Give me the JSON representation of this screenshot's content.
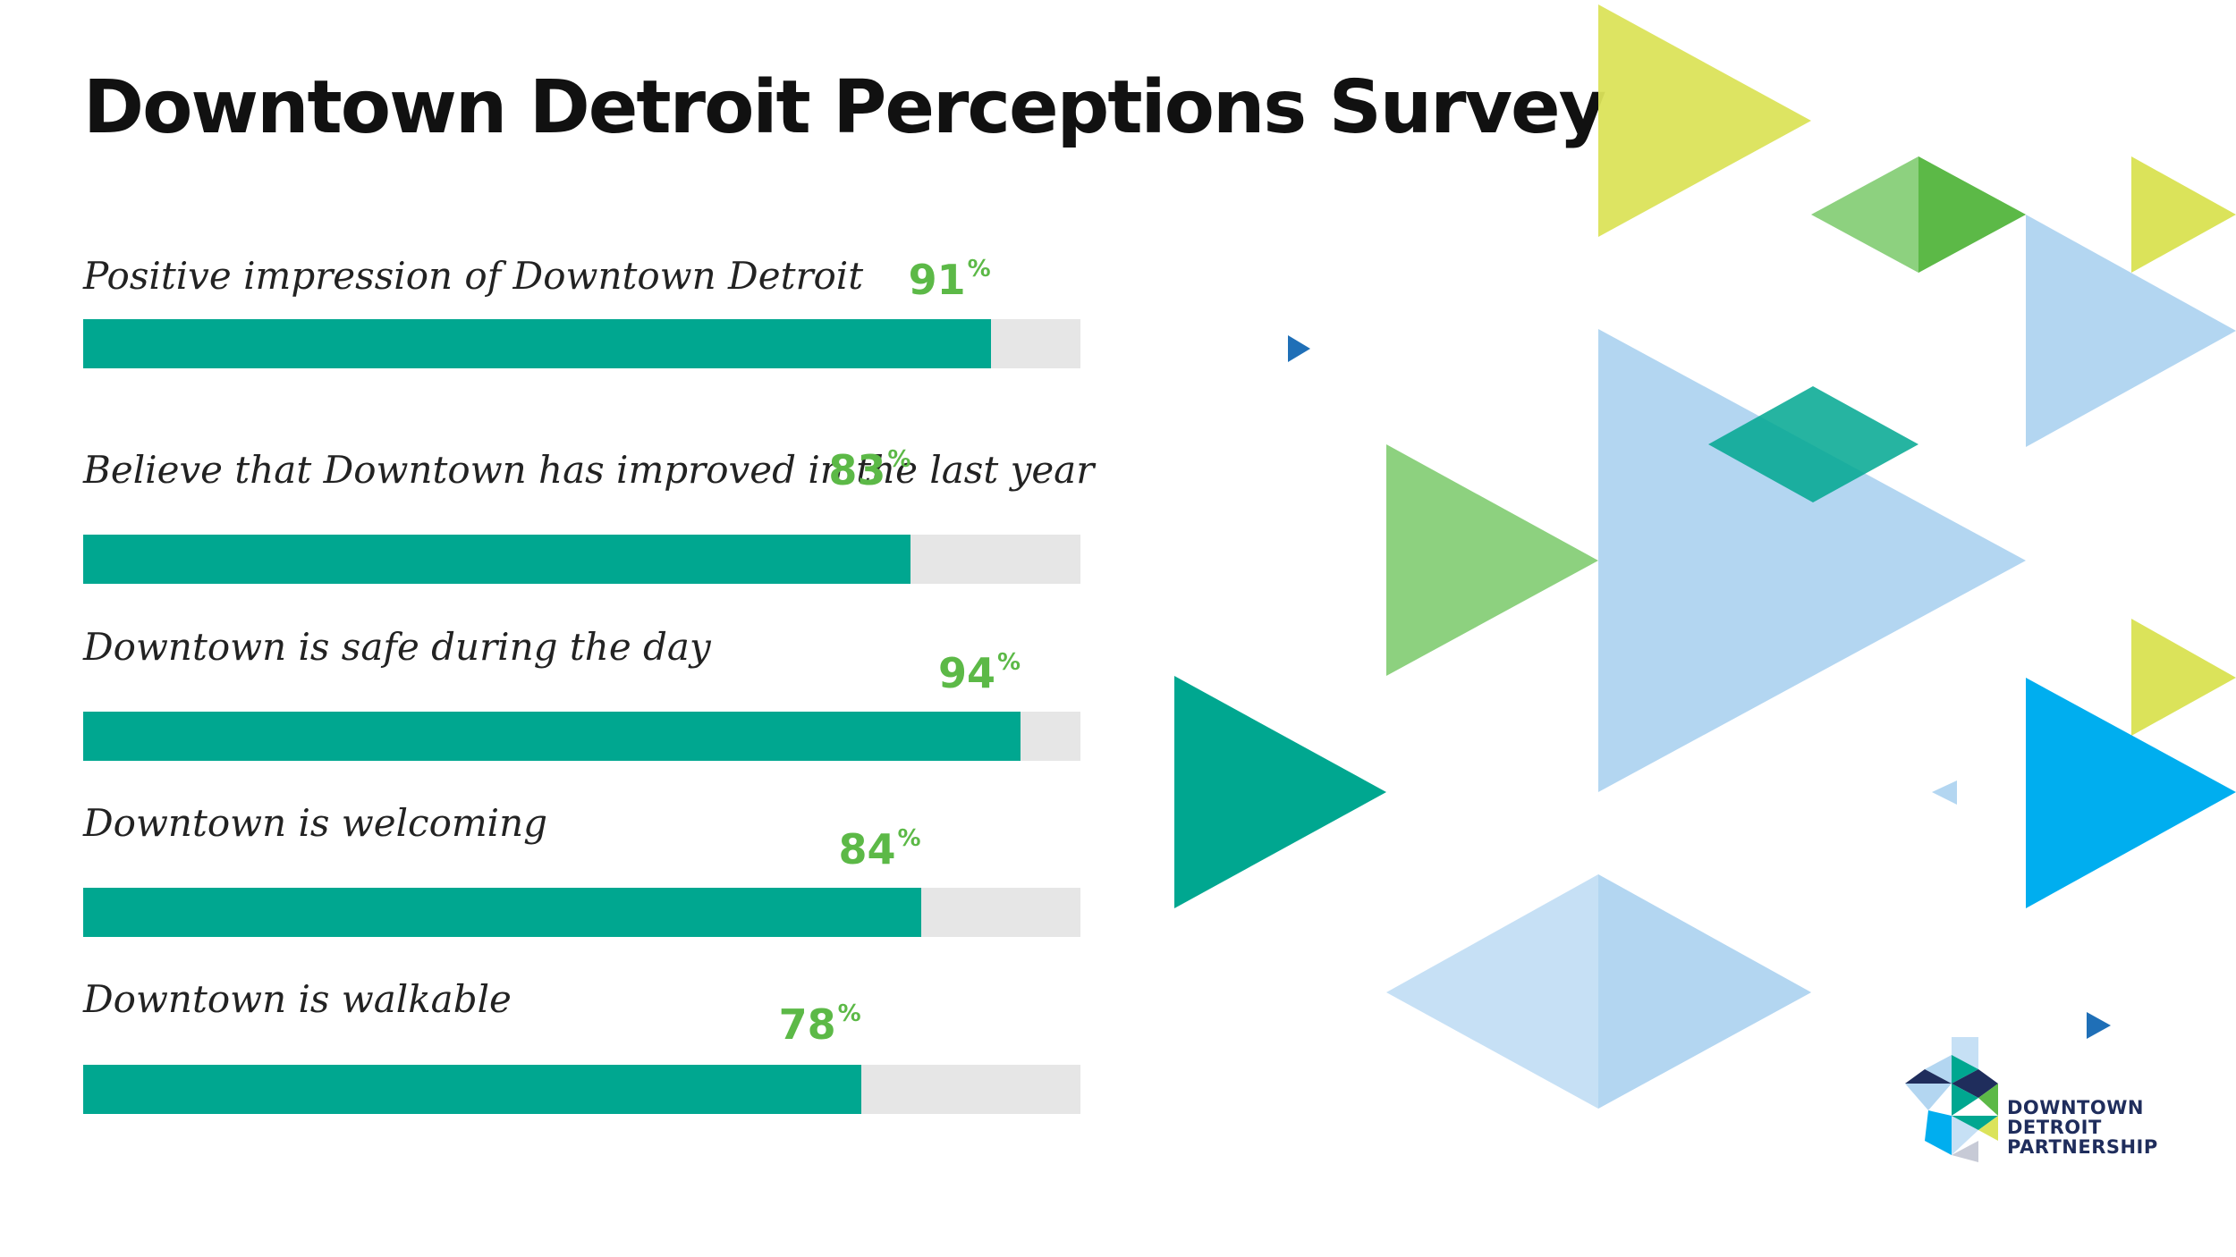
{
  "chart_data": {
    "type": "bar",
    "orientation": "horizontal",
    "title": "Downtown Detroit Perceptions Survey",
    "categories": [
      "Positive impression of Downtown Detroit",
      "Believe that Downtown has improved in the last year",
      "Downtown is safe during the day",
      "Downtown is welcoming",
      "Downtown is walkable"
    ],
    "values": [
      91,
      83,
      94,
      84,
      78
    ],
    "value_suffix": "%",
    "xlim": [
      0,
      100
    ],
    "grid": false,
    "legend": "none",
    "colors": {
      "bar": "#00a790",
      "track": "#e6e6e6",
      "value_text": "#5cb947"
    }
  },
  "logo": {
    "name": "downtown-detroit-partnership-logo",
    "lines": [
      "DOWNTOWN",
      "DETROIT",
      "PARTNERSHIP"
    ],
    "color": "#1f2d5c"
  }
}
